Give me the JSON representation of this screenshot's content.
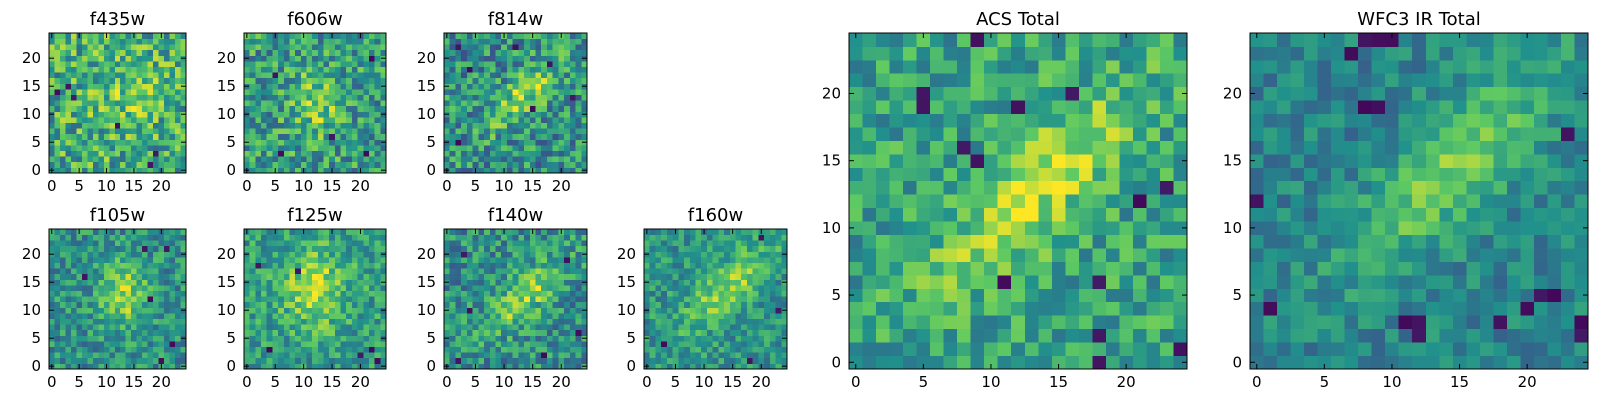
{
  "figure": {
    "colormap": "viridis",
    "background": "#ffffff"
  },
  "chart_data": [
    {
      "type": "heatmap",
      "name": "panel-f435w",
      "title": "f435w",
      "grid_size": 25,
      "xticks": [
        0,
        5,
        10,
        15,
        20
      ],
      "yticks": [
        0,
        5,
        10,
        15,
        20
      ],
      "xlim": [
        -0.5,
        24.5
      ],
      "ylim": [
        -0.5,
        24.5
      ],
      "blob": {
        "kind": "blob",
        "cx": 13,
        "cy": 14,
        "sx": 4,
        "sy": 4,
        "amp": 0.15
      },
      "noise": 0.28,
      "seed": 11,
      "base": 0.62,
      "dark_pixels": [
        [
          3,
          15
        ],
        [
          1,
          14
        ],
        [
          4,
          13
        ],
        [
          12,
          8
        ],
        [
          19,
          3
        ],
        [
          18,
          1
        ]
      ]
    },
    {
      "type": "heatmap",
      "name": "panel-f606w",
      "title": "f606w",
      "grid_size": 25,
      "xticks": [
        0,
        5,
        10,
        15,
        20
      ],
      "yticks": [
        0,
        5,
        10,
        15,
        20
      ],
      "xlim": [
        -0.5,
        24.5
      ],
      "ylim": [
        -0.5,
        24.5
      ],
      "blob": {
        "kind": "blob",
        "cx": 12,
        "cy": 12,
        "sx": 3,
        "sy": 4,
        "amp": 0.25
      },
      "noise": 0.26,
      "seed": 23,
      "base": 0.55,
      "dark_pixels": [
        [
          5,
          17
        ],
        [
          15,
          6
        ],
        [
          21,
          3
        ],
        [
          6,
          3
        ],
        [
          22,
          20
        ]
      ]
    },
    {
      "type": "heatmap",
      "name": "panel-f814w",
      "title": "f814w",
      "grid_size": 25,
      "xticks": [
        0,
        5,
        10,
        15,
        20
      ],
      "yticks": [
        0,
        5,
        10,
        15,
        20
      ],
      "xlim": [
        -0.5,
        24.5
      ],
      "ylim": [
        -0.5,
        24.5
      ],
      "blob": {
        "kind": "ridge",
        "cx": 14,
        "cy": 14,
        "sx": 2.2,
        "sy": 6,
        "amp": 0.32
      },
      "noise": 0.26,
      "seed": 37,
      "base": 0.5,
      "dark_pixels": [
        [
          2,
          22
        ],
        [
          12,
          22
        ],
        [
          18,
          19
        ],
        [
          4,
          18
        ],
        [
          15,
          11
        ],
        [
          2,
          5
        ],
        [
          22,
          13
        ]
      ]
    },
    {
      "type": "heatmap",
      "name": "panel-f105w",
      "title": "f105w",
      "grid_size": 25,
      "xticks": [
        0,
        5,
        10,
        15,
        20
      ],
      "yticks": [
        0,
        5,
        10,
        15,
        20
      ],
      "xlim": [
        -0.5,
        24.5
      ],
      "ylim": [
        -0.5,
        24.5
      ],
      "blob": {
        "kind": "blob",
        "cx": 13,
        "cy": 13,
        "sx": 3,
        "sy": 4,
        "amp": 0.35
      },
      "noise": 0.2,
      "seed": 41,
      "base": 0.5,
      "dark_pixels": [
        [
          17,
          21
        ],
        [
          21,
          21
        ],
        [
          6,
          16
        ],
        [
          18,
          12
        ],
        [
          20,
          1
        ],
        [
          22,
          4
        ]
      ]
    },
    {
      "type": "heatmap",
      "name": "panel-f125w",
      "title": "f125w",
      "grid_size": 25,
      "xticks": [
        0,
        5,
        10,
        15,
        20
      ],
      "yticks": [
        0,
        5,
        10,
        15,
        20
      ],
      "xlim": [
        -0.5,
        24.5
      ],
      "ylim": [
        -0.5,
        24.5
      ],
      "blob": {
        "kind": "blob",
        "cx": 12,
        "cy": 14,
        "sx": 4,
        "sy": 5,
        "amp": 0.32
      },
      "noise": 0.2,
      "seed": 53,
      "base": 0.55,
      "dark_pixels": [
        [
          2,
          18
        ],
        [
          9,
          17
        ],
        [
          4,
          3
        ],
        [
          22,
          3
        ],
        [
          23,
          1
        ],
        [
          20,
          2
        ]
      ]
    },
    {
      "type": "heatmap",
      "name": "panel-f140w",
      "title": "f140w",
      "grid_size": 25,
      "xticks": [
        0,
        5,
        10,
        15,
        20
      ],
      "yticks": [
        0,
        5,
        10,
        15,
        20
      ],
      "xlim": [
        -0.5,
        24.5
      ],
      "ylim": [
        -0.5,
        24.5
      ],
      "blob": {
        "kind": "ridge",
        "cx": 14,
        "cy": 13,
        "sx": 2.4,
        "sy": 6,
        "amp": 0.34
      },
      "noise": 0.22,
      "seed": 67,
      "base": 0.5,
      "dark_pixels": [
        [
          3,
          20
        ],
        [
          21,
          19
        ],
        [
          4,
          10
        ],
        [
          23,
          6
        ],
        [
          17,
          2
        ],
        [
          2,
          1
        ]
      ]
    },
    {
      "type": "heatmap",
      "name": "panel-f160w",
      "title": "f160w",
      "grid_size": 25,
      "xticks": [
        0,
        5,
        10,
        15,
        20
      ],
      "yticks": [
        0,
        5,
        10,
        15,
        20
      ],
      "xlim": [
        -0.5,
        24.5
      ],
      "ylim": [
        -0.5,
        24.5
      ],
      "blob": {
        "kind": "ridge",
        "cx": 14,
        "cy": 14,
        "sx": 2.4,
        "sy": 7,
        "amp": 0.32
      },
      "noise": 0.18,
      "seed": 79,
      "base": 0.52,
      "dark_pixels": [
        [
          18,
          1
        ],
        [
          23,
          10
        ],
        [
          3,
          4
        ],
        [
          20,
          23
        ]
      ]
    },
    {
      "type": "heatmap",
      "name": "panel-acs-total",
      "title": "ACS Total",
      "grid_size": 25,
      "xticks": [
        0,
        5,
        10,
        15,
        20
      ],
      "yticks": [
        0,
        5,
        10,
        15,
        20
      ],
      "xlim": [
        -0.5,
        24.5
      ],
      "ylim": [
        -0.5,
        24.5
      ],
      "blob": {
        "kind": "ridge",
        "cx": 13.5,
        "cy": 13,
        "sx": 2.2,
        "sy": 7,
        "amp": 0.3
      },
      "noise": 0.2,
      "seed": 97,
      "base": 0.58,
      "dark_pixels": [
        [
          9,
          24
        ],
        [
          5,
          19
        ],
        [
          16,
          20
        ],
        [
          8,
          16
        ],
        [
          12,
          19
        ],
        [
          21,
          12
        ],
        [
          23,
          13
        ],
        [
          18,
          6
        ],
        [
          11,
          6
        ],
        [
          18,
          2
        ],
        [
          24,
          1
        ],
        [
          18,
          0
        ],
        [
          9,
          15
        ],
        [
          5,
          20
        ]
      ]
    },
    {
      "type": "heatmap",
      "name": "panel-wfc3-ir-total",
      "title": "WFC3 IR Total",
      "grid_size": 25,
      "xticks": [
        0,
        5,
        10,
        15,
        20
      ],
      "yticks": [
        0,
        5,
        10,
        15,
        20
      ],
      "xlim": [
        -0.5,
        24.5
      ],
      "ylim": [
        -0.5,
        24.5
      ],
      "blob": {
        "kind": "ridge",
        "cx": 14.5,
        "cy": 14.5,
        "sx": 2.4,
        "sy": 7.5,
        "amp": 0.32
      },
      "noise": 0.14,
      "seed": 131,
      "base": 0.45,
      "dark_pixels": [
        [
          9,
          24
        ],
        [
          10,
          24
        ],
        [
          8,
          24
        ],
        [
          8,
          19
        ],
        [
          9,
          19
        ],
        [
          0,
          12
        ],
        [
          21,
          5
        ],
        [
          22,
          5
        ],
        [
          20,
          4
        ],
        [
          1,
          4
        ],
        [
          11,
          3
        ],
        [
          12,
          3
        ],
        [
          12,
          2
        ],
        [
          18,
          3
        ],
        [
          24,
          3
        ],
        [
          24,
          2
        ],
        [
          7,
          23
        ],
        [
          23,
          17
        ]
      ]
    }
  ]
}
